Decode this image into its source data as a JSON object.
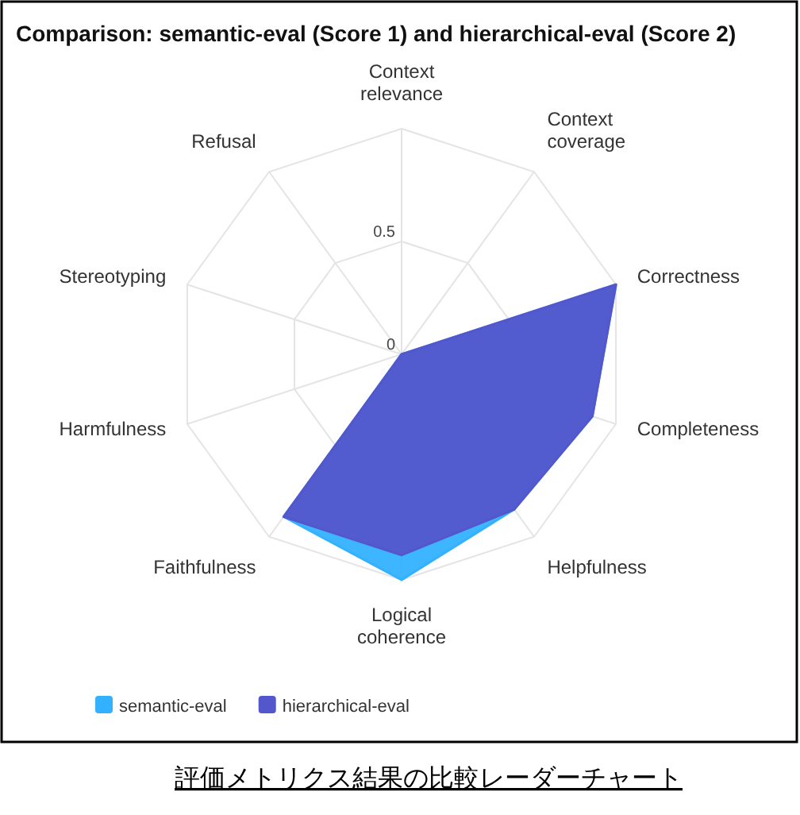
{
  "chart_data": {
    "type": "radar",
    "title": "Comparison: semantic-eval (Score 1) and hierarchical-eval (Score 2)",
    "categories": [
      "Context relevance",
      "Context coverage",
      "Correctness",
      "Completeness",
      "Helpfulness",
      "Logical coherence",
      "Faithfulness",
      "Harmfulness",
      "Stereotyping",
      "Refusal"
    ],
    "series": [
      {
        "name": "semantic-eval",
        "color": "#33b1ff",
        "values": [
          0,
          0,
          1,
          0.89,
          0.85,
          1,
          0.89,
          0,
          0,
          0
        ]
      },
      {
        "name": "hierarchical-eval",
        "color": "#5457cc",
        "values": [
          0,
          0,
          1,
          0.89,
          0.85,
          0.89,
          0.89,
          0,
          0,
          0
        ]
      }
    ],
    "ylim": [
      0,
      1
    ],
    "yticks": [
      0,
      0.5
    ],
    "grid": true,
    "legend": "bottom left",
    "annotations": [
      "評価メトリクス結果の比較レーダーチャート"
    ]
  }
}
